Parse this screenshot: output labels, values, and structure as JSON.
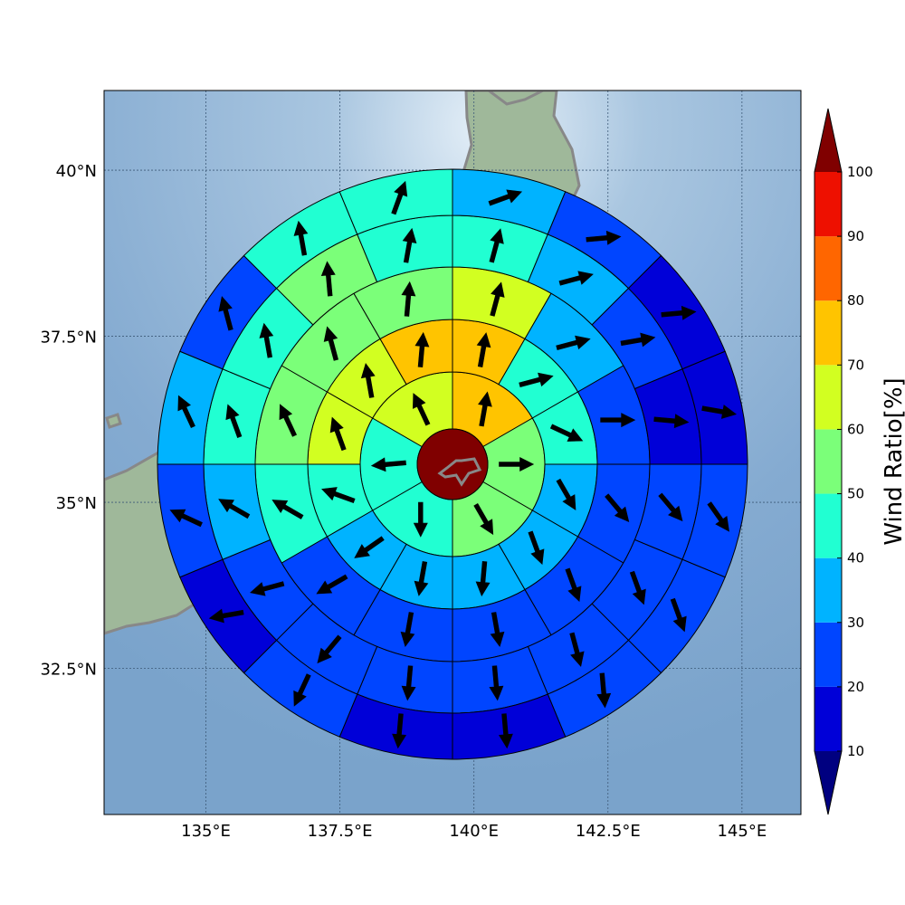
{
  "chart_data": {
    "type": "heatmap",
    "subtype": "polar sector map with wind direction arrows",
    "lon_range": [
      133.1,
      146.1
    ],
    "lat_range": [
      30.3,
      41.2
    ],
    "x_ticks": [
      {
        "value": 135,
        "label": "135°E"
      },
      {
        "value": 137.5,
        "label": "137.5°E"
      },
      {
        "value": 140,
        "label": "140°E"
      },
      {
        "value": 142.5,
        "label": "142.5°E"
      },
      {
        "value": 145,
        "label": "145°E"
      }
    ],
    "y_ticks": [
      {
        "value": 32.5,
        "label": "32.5°N"
      },
      {
        "value": 35,
        "label": "35°N"
      },
      {
        "value": 37.5,
        "label": "37.5°N"
      },
      {
        "value": 40,
        "label": "40°N"
      }
    ],
    "grid": true,
    "center_value": 100,
    "colorbar": {
      "title": "Wind Ratio[%]",
      "position": "right",
      "extend": "both",
      "levels": [
        10,
        20,
        30,
        40,
        50,
        60,
        70,
        80,
        90,
        100
      ],
      "tick_labels": [
        "10",
        "20",
        "30",
        "40",
        "50",
        "60",
        "70",
        "80",
        "90",
        "100"
      ],
      "colors": [
        "#0000d8",
        "#0045ff",
        "#00b3ff",
        "#21ffd2",
        "#7bff79",
        "#d2ff21",
        "#ffc400",
        "#ff6600",
        "#ee1000"
      ],
      "under_color": "#000080",
      "over_color": "#800000"
    },
    "sectors_note": "angle in degrees clockwise from north; value in percent; wind in degrees clockwise from north",
    "rings": [
      {
        "name": "ring1",
        "sectors": [
          {
            "angle": 0,
            "value": 75,
            "wind": 10
          },
          {
            "angle": 60,
            "value": 55,
            "wind": 90
          },
          {
            "angle": 120,
            "value": 55,
            "wind": 150
          },
          {
            "angle": 180,
            "value": 45,
            "wind": 180
          },
          {
            "angle": 240,
            "value": 45,
            "wind": 265
          },
          {
            "angle": 300,
            "value": 65,
            "wind": 335
          }
        ]
      },
      {
        "name": "ring2",
        "sectors": [
          {
            "angle": 0,
            "value": 75,
            "wind": 10
          },
          {
            "angle": 30,
            "value": 45,
            "wind": 75
          },
          {
            "angle": 60,
            "value": 45,
            "wind": 115
          },
          {
            "angle": 90,
            "value": 35,
            "wind": 150
          },
          {
            "angle": 120,
            "value": 35,
            "wind": 160
          },
          {
            "angle": 150,
            "value": 35,
            "wind": 185
          },
          {
            "angle": 180,
            "value": 35,
            "wind": 190
          },
          {
            "angle": 210,
            "value": 35,
            "wind": 235
          },
          {
            "angle": 240,
            "value": 45,
            "wind": 290
          },
          {
            "angle": 270,
            "value": 65,
            "wind": 340
          },
          {
            "angle": 300,
            "value": 65,
            "wind": 350
          },
          {
            "angle": 330,
            "value": 75,
            "wind": 5
          }
        ]
      },
      {
        "name": "ring3",
        "sectors": [
          {
            "angle": 0,
            "value": 65,
            "wind": 15
          },
          {
            "angle": 30,
            "value": 35,
            "wind": 75
          },
          {
            "angle": 60,
            "value": 25,
            "wind": 90
          },
          {
            "angle": 90,
            "value": 25,
            "wind": 140
          },
          {
            "angle": 120,
            "value": 25,
            "wind": 160
          },
          {
            "angle": 150,
            "value": 25,
            "wind": 170
          },
          {
            "angle": 180,
            "value": 25,
            "wind": 190
          },
          {
            "angle": 210,
            "value": 25,
            "wind": 240
          },
          {
            "angle": 240,
            "value": 45,
            "wind": 300
          },
          {
            "angle": 270,
            "value": 55,
            "wind": 335
          },
          {
            "angle": 300,
            "value": 55,
            "wind": 345
          },
          {
            "angle": 330,
            "value": 55,
            "wind": 5
          }
        ]
      },
      {
        "name": "ring4",
        "sectors": [
          {
            "angle": 0,
            "value": 45,
            "wind": 15
          },
          {
            "angle": 22.5,
            "value": 35,
            "wind": 75
          },
          {
            "angle": 45,
            "value": 25,
            "wind": 80
          },
          {
            "angle": 67.5,
            "value": 15,
            "wind": 95
          },
          {
            "angle": 90,
            "value": 25,
            "wind": 140
          },
          {
            "angle": 112.5,
            "value": 25,
            "wind": 160
          },
          {
            "angle": 135,
            "value": 25,
            "wind": 165
          },
          {
            "angle": 157.5,
            "value": 25,
            "wind": 175
          },
          {
            "angle": 180,
            "value": 25,
            "wind": 185
          },
          {
            "angle": 202.5,
            "value": 25,
            "wind": 220
          },
          {
            "angle": 225,
            "value": 25,
            "wind": 255
          },
          {
            "angle": 247.5,
            "value": 35,
            "wind": 300
          },
          {
            "angle": 270,
            "value": 45,
            "wind": 340
          },
          {
            "angle": 292.5,
            "value": 45,
            "wind": 350
          },
          {
            "angle": 315,
            "value": 55,
            "wind": 355
          },
          {
            "angle": 337.5,
            "value": 45,
            "wind": 10
          }
        ]
      },
      {
        "name": "ring5",
        "sectors": [
          {
            "angle": 0,
            "value": 35,
            "wind": 70
          },
          {
            "angle": 22.5,
            "value": 25,
            "wind": 85
          },
          {
            "angle": 45,
            "value": 15,
            "wind": 85
          },
          {
            "angle": 67.5,
            "value": 15,
            "wind": 100
          },
          {
            "angle": 90,
            "value": 25,
            "wind": 145
          },
          {
            "angle": 112.5,
            "value": 25,
            "wind": 160
          },
          {
            "angle": 135,
            "value": 25,
            "wind": 175
          },
          {
            "angle": 157.5,
            "value": 15,
            "wind": 175
          },
          {
            "angle": 180,
            "value": 15,
            "wind": 185
          },
          {
            "angle": 202.5,
            "value": 25,
            "wind": 205
          },
          {
            "angle": 225,
            "value": 15,
            "wind": 260
          },
          {
            "angle": 247.5,
            "value": 25,
            "wind": 295
          },
          {
            "angle": 270,
            "value": 35,
            "wind": 335
          },
          {
            "angle": 292.5,
            "value": 25,
            "wind": 345
          },
          {
            "angle": 315,
            "value": 45,
            "wind": 350
          },
          {
            "angle": 337.5,
            "value": 45,
            "wind": 20
          }
        ]
      }
    ]
  }
}
